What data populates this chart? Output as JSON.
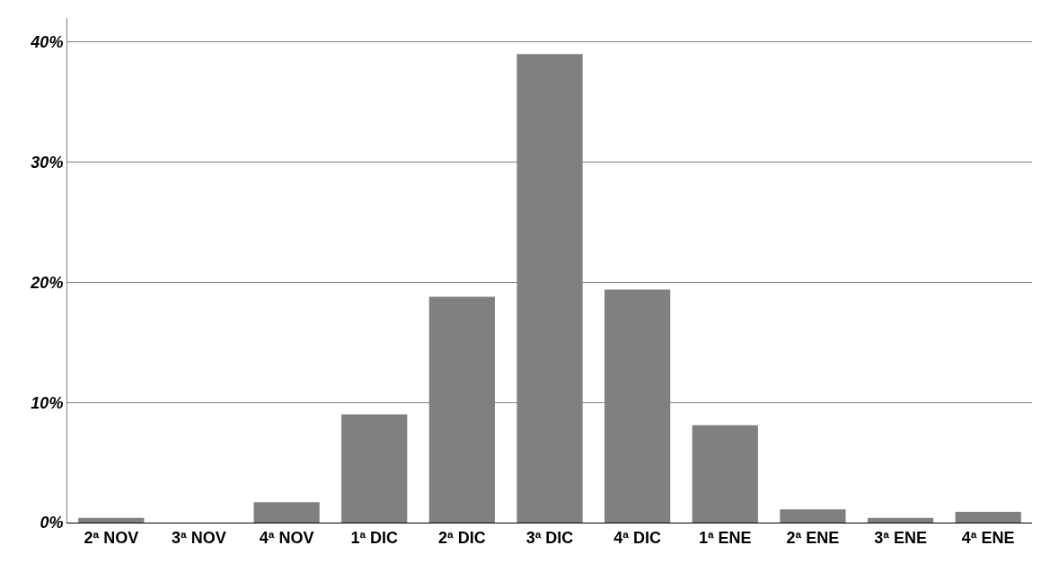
{
  "chart_data": {
    "type": "bar",
    "categories": [
      "2ª NOV",
      "3ª NOV",
      "4ª NOV",
      "1ª DIC",
      "2ª DIC",
      "3ª DIC",
      "4ª DIC",
      "1ª ENE",
      "2ª ENE",
      "3ª ENE",
      "4ª ENE"
    ],
    "values": [
      0.4,
      0,
      1.7,
      9.0,
      18.8,
      39.0,
      19.4,
      8.1,
      1.1,
      0.4,
      0.9
    ],
    "color": "#808080",
    "ylim": [
      0,
      42
    ],
    "yticks": [
      {
        "value": 0,
        "label": "0%"
      },
      {
        "value": 10,
        "label": "10%"
      },
      {
        "value": 20,
        "label": "20%"
      },
      {
        "value": 30,
        "label": "30%"
      },
      {
        "value": 40,
        "label": "40%"
      }
    ],
    "grid": "y"
  }
}
